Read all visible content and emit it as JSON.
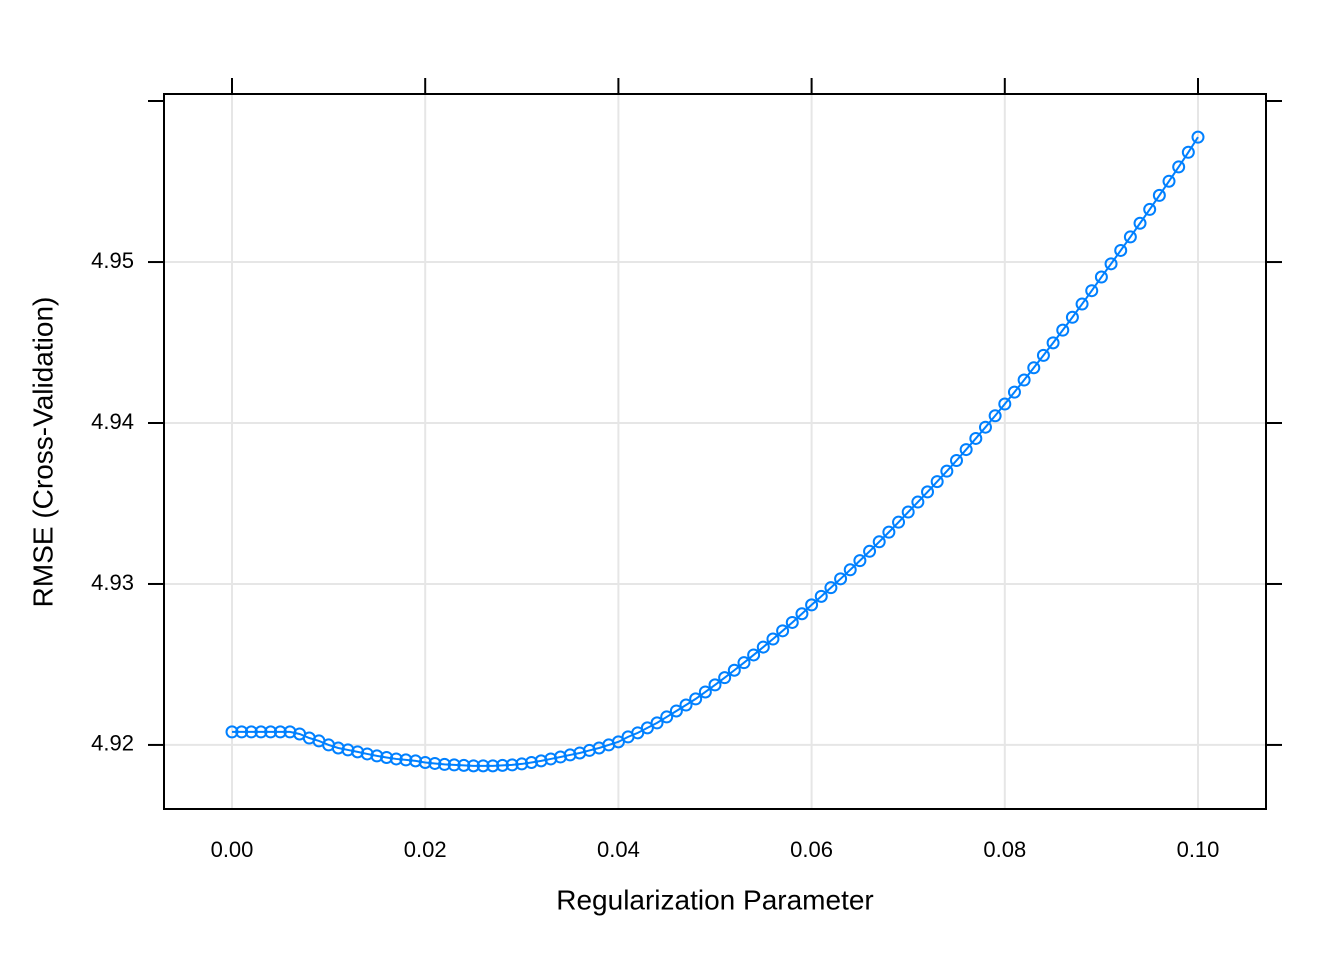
{
  "chart_data": {
    "type": "line",
    "xlabel": "Regularization Parameter",
    "ylabel": "RMSE (Cross-Validation)",
    "xlim": [
      -0.00704,
      0.10704
    ],
    "ylim": [
      4.91602,
      4.96044
    ],
    "xticks": [
      {
        "value": 0,
        "label": "0.00"
      },
      0.02,
      0.04,
      0.06,
      0.08,
      {
        "value": 0.1,
        "label": "0.10"
      }
    ],
    "yticks": [
      4.92,
      4.93,
      4.94,
      4.95
    ],
    "grid": true,
    "x": [
      0,
      0.001,
      0.002,
      0.003,
      0.004,
      0.005,
      0.006,
      0.007,
      0.008,
      0.009,
      0.01,
      0.011,
      0.012,
      0.013,
      0.014,
      0.015,
      0.016,
      0.017,
      0.018,
      0.019,
      0.02,
      0.021,
      0.022,
      0.023,
      0.024,
      0.025,
      0.026,
      0.027,
      0.028,
      0.029,
      0.03,
      0.031,
      0.032,
      0.033,
      0.034,
      0.035,
      0.036,
      0.037,
      0.038,
      0.039,
      0.04,
      0.041,
      0.042,
      0.043,
      0.044,
      0.045,
      0.046,
      0.047,
      0.048,
      0.049,
      0.05,
      0.051,
      0.052,
      0.053,
      0.054,
      0.055,
      0.056,
      0.057,
      0.058,
      0.059,
      0.06,
      0.061,
      0.062,
      0.063,
      0.064,
      0.065,
      0.066,
      0.067,
      0.068,
      0.069,
      0.07,
      0.071,
      0.072,
      0.073,
      0.074,
      0.075,
      0.076,
      0.077,
      0.078,
      0.079,
      0.08,
      0.081,
      0.082,
      0.083,
      0.084,
      0.085,
      0.086,
      0.087,
      0.088,
      0.089,
      0.09,
      0.091,
      0.092,
      0.093,
      0.094,
      0.095,
      0.096,
      0.097,
      0.098,
      0.099,
      0.1
    ],
    "series": [
      {
        "color": "#0080ff",
        "values": [
          4.92081,
          4.92081,
          4.92081,
          4.92081,
          4.92081,
          4.92081,
          4.92081,
          4.92068,
          4.92043,
          4.92025,
          4.92,
          4.91981,
          4.91969,
          4.91957,
          4.91944,
          4.91932,
          4.91922,
          4.91913,
          4.91907,
          4.91901,
          4.91891,
          4.91885,
          4.91879,
          4.91876,
          4.91873,
          4.9187,
          4.9187,
          4.9187,
          4.91873,
          4.91876,
          4.91882,
          4.91891,
          4.91901,
          4.91913,
          4.91925,
          4.91938,
          4.9195,
          4.91966,
          4.91981,
          4.92,
          4.92019,
          4.9205,
          4.92075,
          4.92106,
          4.92137,
          4.92174,
          4.92211,
          4.92248,
          4.92286,
          4.92329,
          4.92373,
          4.92418,
          4.92464,
          4.92511,
          4.92559,
          4.92608,
          4.92658,
          4.92709,
          4.92761,
          4.92815,
          4.9287,
          4.92923,
          4.92977,
          4.93032,
          4.93088,
          4.93145,
          4.93203,
          4.93262,
          4.93322,
          4.93384,
          4.93447,
          4.93509,
          4.93572,
          4.93636,
          4.93701,
          4.93767,
          4.93835,
          4.93904,
          4.93974,
          4.94045,
          4.94118,
          4.94192,
          4.94267,
          4.94343,
          4.9442,
          4.94498,
          4.94577,
          4.94657,
          4.94739,
          4.94822,
          4.94907,
          4.94989,
          4.95072,
          4.95156,
          4.95241,
          4.95327,
          4.95414,
          4.95502,
          4.95591,
          4.95682,
          4.95776
        ]
      }
    ]
  }
}
